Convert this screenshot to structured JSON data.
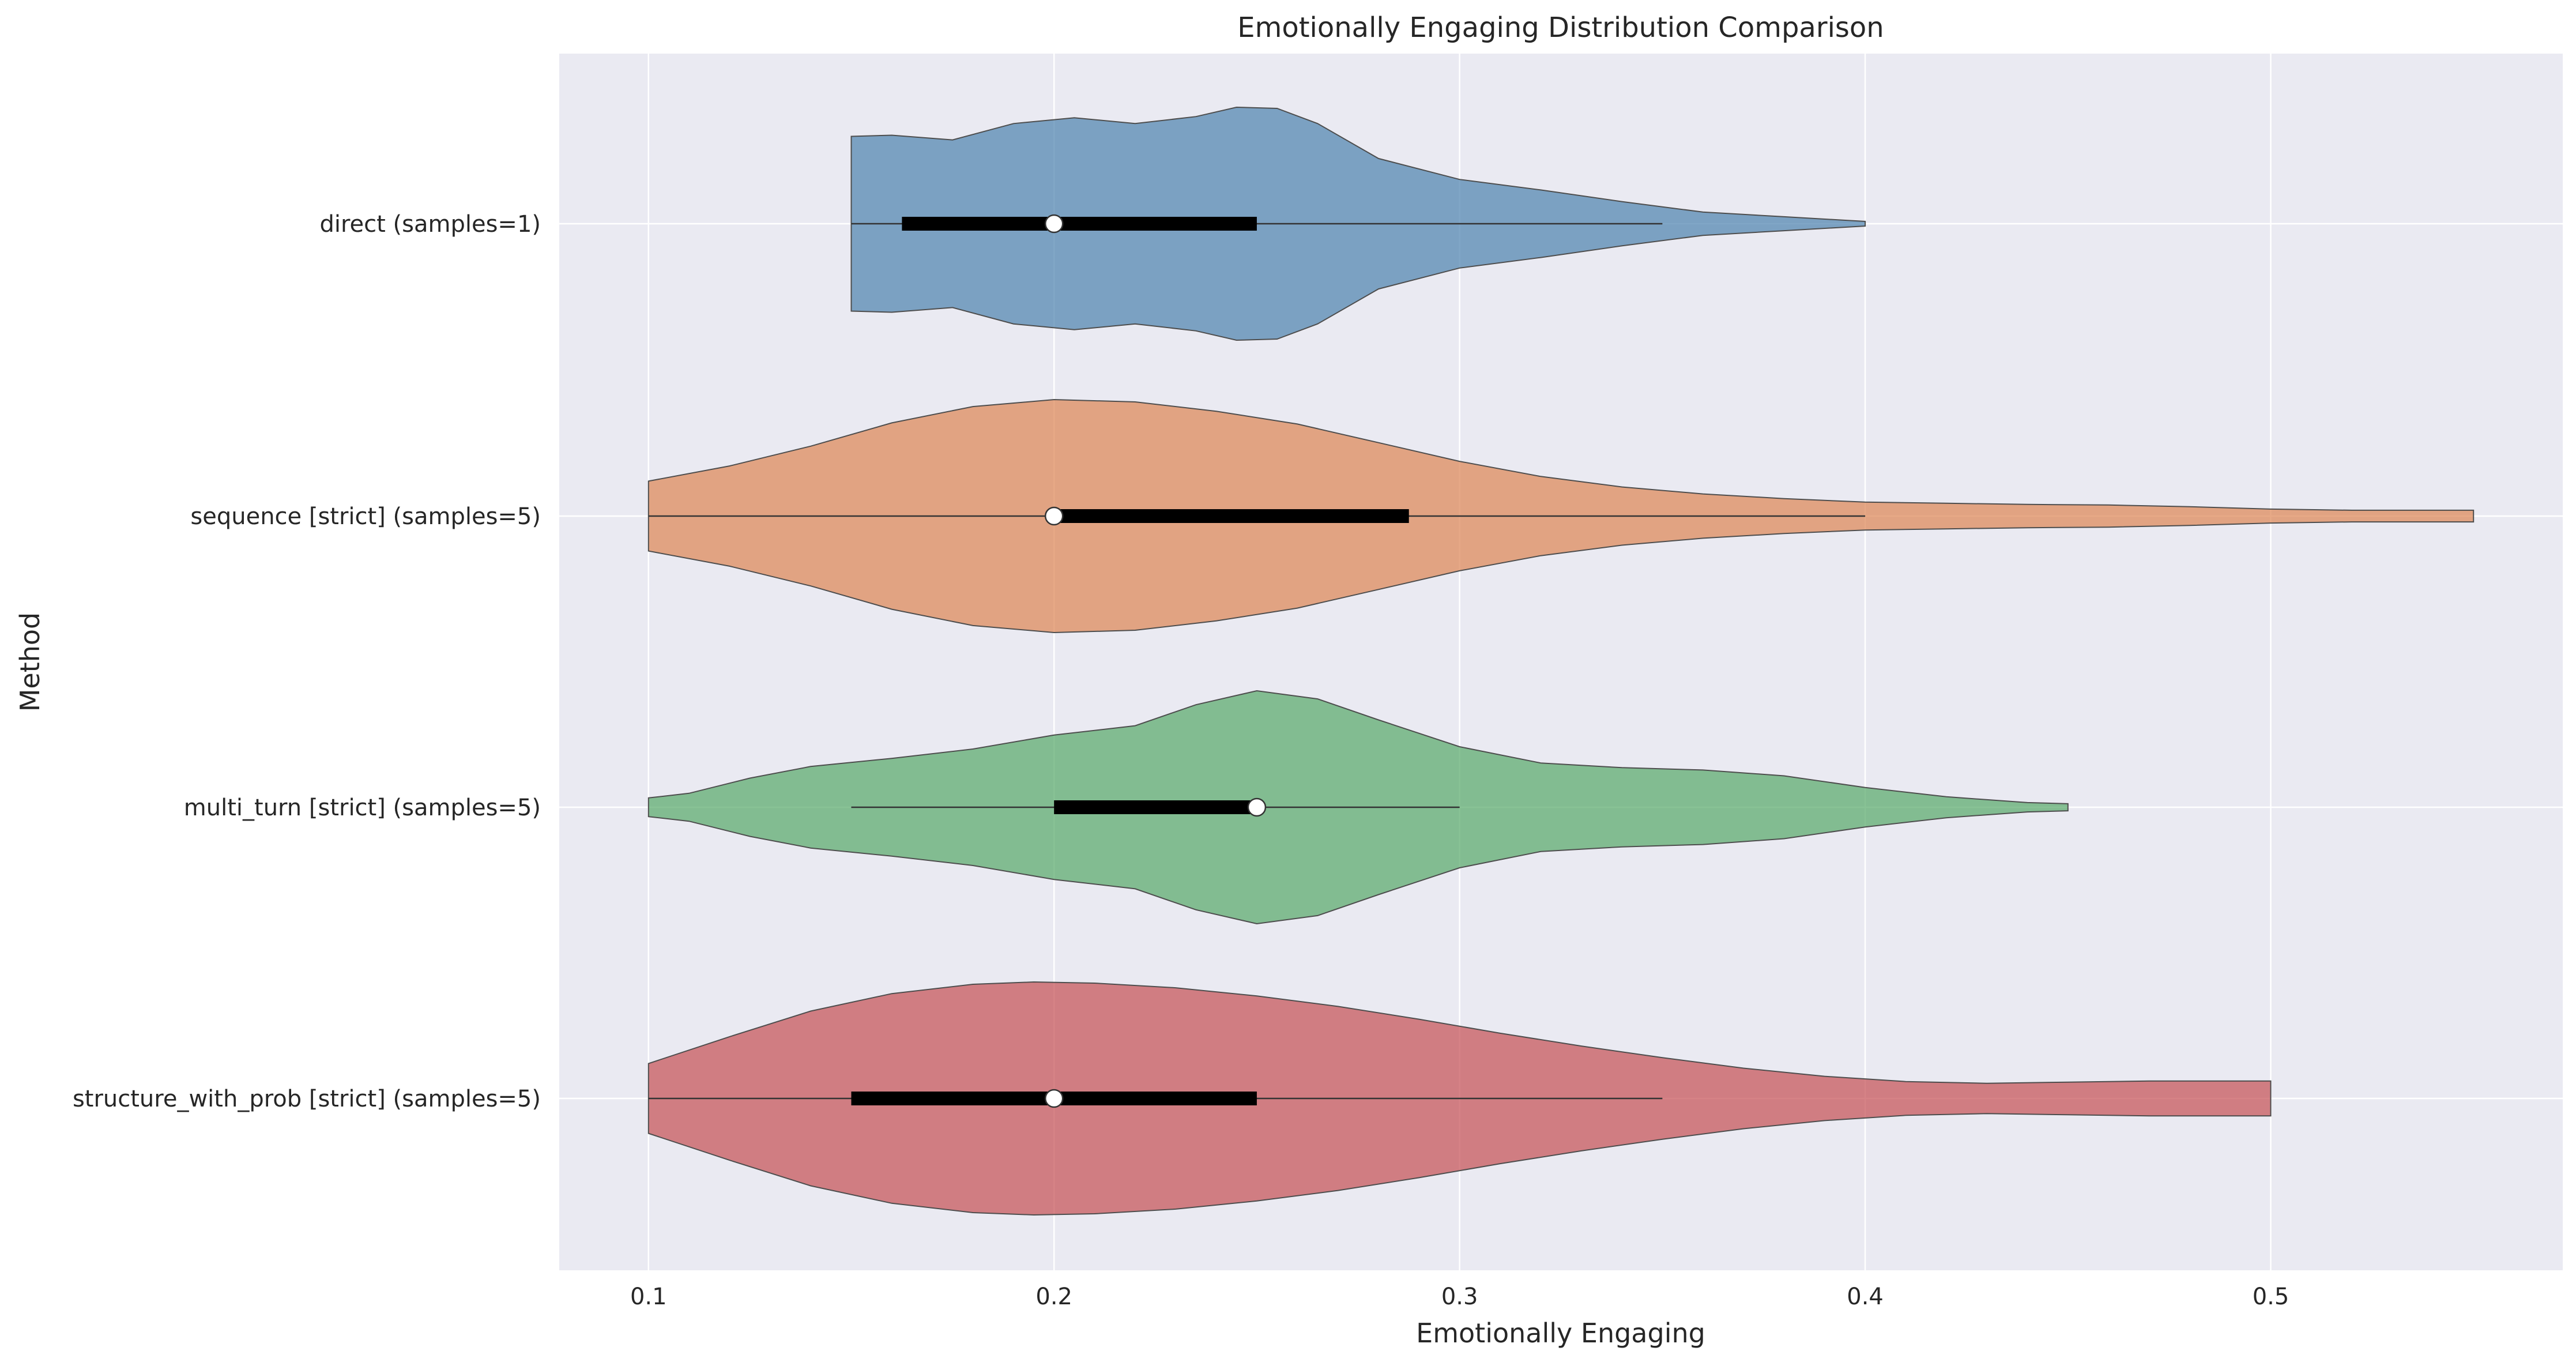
{
  "chart_data": {
    "type": "violin",
    "title": "Emotionally Engaging Distribution Comparison",
    "xlabel": "Emotionally Engaging",
    "ylabel": "Method",
    "xlim": [
      0.078,
      0.572
    ],
    "xticks": [
      0.1,
      0.2,
      0.3,
      0.4,
      0.5
    ],
    "xtick_labels": [
      "0.1",
      "0.2",
      "0.3",
      "0.4",
      "0.5"
    ],
    "grid": true,
    "colors": {
      "background": "#eaeaf2",
      "grid": "#ffffff",
      "edge": "#4d4d4d"
    },
    "series": [
      {
        "label": "direct (samples=1)",
        "color": "#4c81ae",
        "min": 0.15,
        "max": 0.4,
        "q1": 0.1625,
        "median": 0.2,
        "q3": 0.25,
        "whisker_low": 0.15,
        "whisker_high": 0.35,
        "density": [
          [
            0.15,
            0.75
          ],
          [
            0.16,
            0.76
          ],
          [
            0.175,
            0.72
          ],
          [
            0.19,
            0.86
          ],
          [
            0.205,
            0.91
          ],
          [
            0.22,
            0.86
          ],
          [
            0.235,
            0.92
          ],
          [
            0.245,
            1.0
          ],
          [
            0.255,
            0.99
          ],
          [
            0.265,
            0.86
          ],
          [
            0.28,
            0.56
          ],
          [
            0.3,
            0.38
          ],
          [
            0.32,
            0.29
          ],
          [
            0.34,
            0.19
          ],
          [
            0.36,
            0.1
          ],
          [
            0.38,
            0.06
          ],
          [
            0.4,
            0.02
          ]
        ]
      },
      {
        "label": "sequence [strict] (samples=5)",
        "color": "#dd8452",
        "min": 0.1,
        "max": 0.55,
        "q1": 0.2,
        "median": 0.2,
        "q3": 0.2875,
        "whisker_low": 0.1,
        "whisker_high": 0.4,
        "density": [
          [
            0.1,
            0.3
          ],
          [
            0.12,
            0.43
          ],
          [
            0.14,
            0.6
          ],
          [
            0.16,
            0.8
          ],
          [
            0.18,
            0.94
          ],
          [
            0.2,
            1.0
          ],
          [
            0.22,
            0.98
          ],
          [
            0.24,
            0.9
          ],
          [
            0.26,
            0.79
          ],
          [
            0.28,
            0.63
          ],
          [
            0.3,
            0.47
          ],
          [
            0.32,
            0.34
          ],
          [
            0.34,
            0.25
          ],
          [
            0.36,
            0.19
          ],
          [
            0.38,
            0.15
          ],
          [
            0.4,
            0.12
          ],
          [
            0.42,
            0.11
          ],
          [
            0.44,
            0.1
          ],
          [
            0.46,
            0.095
          ],
          [
            0.48,
            0.08
          ],
          [
            0.5,
            0.06
          ],
          [
            0.52,
            0.05
          ],
          [
            0.535,
            0.05
          ],
          [
            0.55,
            0.05
          ]
        ]
      },
      {
        "label": "multi_turn [strict] (samples=5)",
        "color": "#55a868",
        "min": 0.1,
        "max": 0.45,
        "q1": 0.2,
        "median": 0.25,
        "q3": 0.25,
        "whisker_low": 0.15,
        "whisker_high": 0.3,
        "density": [
          [
            0.1,
            0.08
          ],
          [
            0.11,
            0.12
          ],
          [
            0.125,
            0.25
          ],
          [
            0.14,
            0.35
          ],
          [
            0.16,
            0.42
          ],
          [
            0.18,
            0.5
          ],
          [
            0.2,
            0.62
          ],
          [
            0.22,
            0.7
          ],
          [
            0.235,
            0.88
          ],
          [
            0.25,
            1.0
          ],
          [
            0.265,
            0.93
          ],
          [
            0.28,
            0.75
          ],
          [
            0.3,
            0.52
          ],
          [
            0.32,
            0.38
          ],
          [
            0.34,
            0.34
          ],
          [
            0.36,
            0.32
          ],
          [
            0.38,
            0.27
          ],
          [
            0.4,
            0.17
          ],
          [
            0.42,
            0.09
          ],
          [
            0.44,
            0.04
          ],
          [
            0.45,
            0.03
          ]
        ]
      },
      {
        "label": "structure_with_prob [strict] (samples=5)",
        "color": "#c44e52",
        "min": 0.1,
        "max": 0.5,
        "q1": 0.15,
        "median": 0.2,
        "q3": 0.25,
        "whisker_low": 0.1,
        "whisker_high": 0.35,
        "density": [
          [
            0.1,
            0.3
          ],
          [
            0.12,
            0.53
          ],
          [
            0.14,
            0.75
          ],
          [
            0.16,
            0.9
          ],
          [
            0.18,
            0.98
          ],
          [
            0.195,
            1.0
          ],
          [
            0.21,
            0.99
          ],
          [
            0.23,
            0.95
          ],
          [
            0.25,
            0.88
          ],
          [
            0.27,
            0.79
          ],
          [
            0.29,
            0.68
          ],
          [
            0.31,
            0.56
          ],
          [
            0.33,
            0.45
          ],
          [
            0.35,
            0.35
          ],
          [
            0.37,
            0.26
          ],
          [
            0.39,
            0.19
          ],
          [
            0.41,
            0.145
          ],
          [
            0.43,
            0.13
          ],
          [
            0.45,
            0.14
          ],
          [
            0.47,
            0.15
          ],
          [
            0.485,
            0.15
          ],
          [
            0.5,
            0.15
          ]
        ]
      }
    ]
  }
}
